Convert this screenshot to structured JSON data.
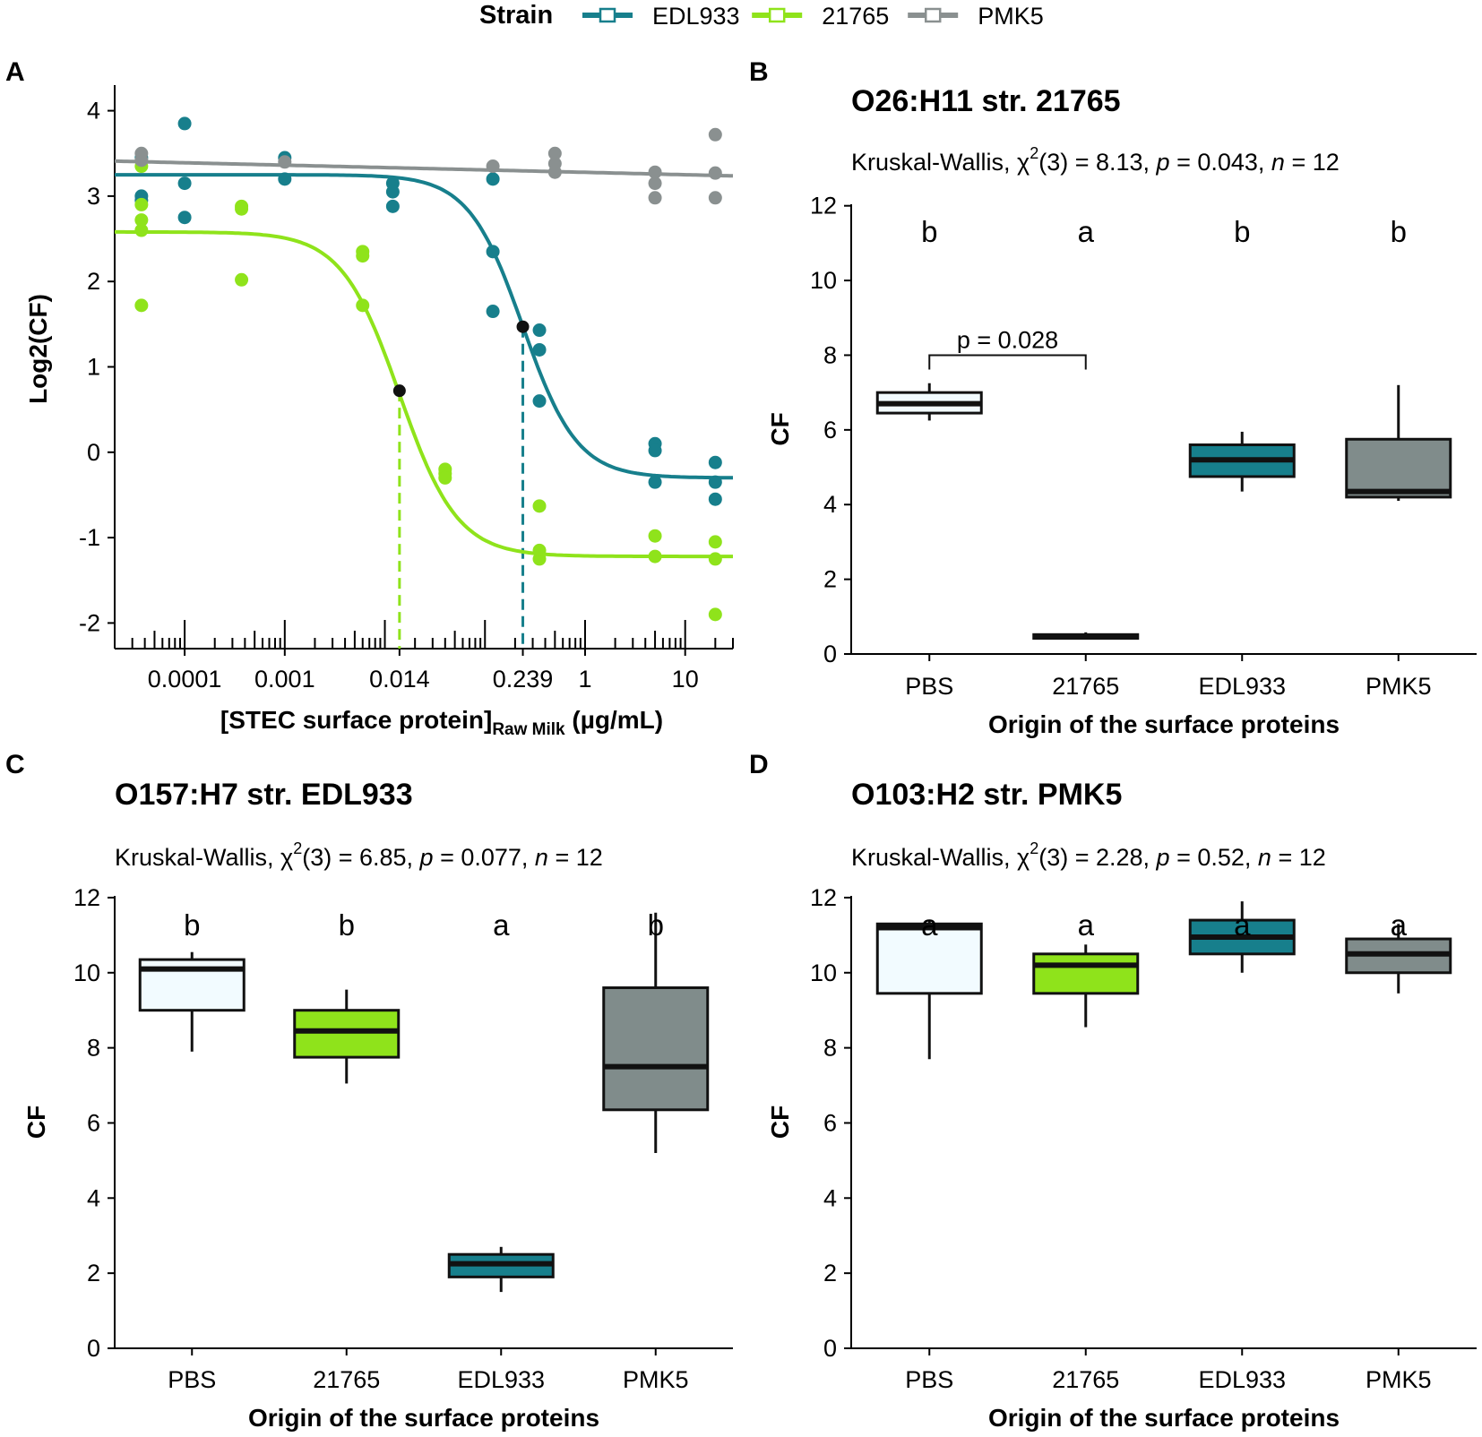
{
  "legend": {
    "title": "Strain",
    "entries": [
      {
        "label": "EDL933",
        "color": "#177F8C"
      },
      {
        "label": "21765",
        "color": "#8FE31B"
      },
      {
        "label": "PMK5",
        "color": "#8A9090"
      }
    ]
  },
  "colors": {
    "PBS": "#F2FBFF",
    "21765": "#8FE31B",
    "EDL933": "#177F8C",
    "PMK5": "#808C8B"
  },
  "chart_data": [
    {
      "panel": "A",
      "type": "scatter",
      "title": "",
      "xlabel": "[STEC surface protein]",
      "xlabel_sub": "Raw Milk",
      "xlabel_unit": " (µg/mL)",
      "ylabel": "Log2(CF)",
      "xscale": "log10",
      "xlim": [
        2e-05,
        30
      ],
      "ylim": [
        -2.3,
        4.3
      ],
      "yticks": [
        "4",
        "3",
        "2",
        "1",
        "0",
        "-1",
        "-2"
      ],
      "xticks": [
        {
          "value": 0.0001,
          "label": "0.0001"
        },
        {
          "value": 0.001,
          "label": "0.001"
        },
        {
          "value": 0.014,
          "label": "0.014"
        },
        {
          "value": 0.239,
          "label": "0.239"
        },
        {
          "value": 1,
          "label": "1"
        },
        {
          "value": 10,
          "label": "10"
        }
      ],
      "series": [
        {
          "name": "EDL933",
          "color": "#177F8C",
          "curve": {
            "top": 3.25,
            "bottom": -0.3,
            "ec50": 0.239,
            "hill": 1.6
          },
          "ec50_point": [
            0.239,
            1.47
          ],
          "points": [
            [
              3.7e-05,
              3.45
            ],
            [
              3.7e-05,
              3.0
            ],
            [
              3.7e-05,
              2.95
            ],
            [
              0.0001,
              3.85
            ],
            [
              0.0001,
              3.15
            ],
            [
              0.0001,
              2.75
            ],
            [
              0.001,
              3.45
            ],
            [
              0.001,
              3.2
            ],
            [
              0.012,
              3.15
            ],
            [
              0.012,
              3.05
            ],
            [
              0.012,
              2.88
            ],
            [
              0.12,
              3.2
            ],
            [
              0.12,
              2.35
            ],
            [
              0.12,
              1.65
            ],
            [
              0.35,
              1.43
            ],
            [
              0.35,
              1.2
            ],
            [
              0.35,
              0.6
            ],
            [
              5,
              0.1
            ],
            [
              5,
              0.02
            ],
            [
              5,
              -0.35
            ],
            [
              20,
              -0.12
            ],
            [
              20,
              -0.35
            ],
            [
              20,
              -0.55
            ]
          ]
        },
        {
          "name": "21765",
          "color": "#8FE31B",
          "curve": {
            "top": 2.58,
            "bottom": -1.22,
            "ec50": 0.014,
            "hill": 1.5
          },
          "ec50_point": [
            0.014,
            0.72
          ],
          "points": [
            [
              3.7e-05,
              3.35
            ],
            [
              3.7e-05,
              2.9
            ],
            [
              3.7e-05,
              2.72
            ],
            [
              3.7e-05,
              2.6
            ],
            [
              3.7e-05,
              1.72
            ],
            [
              0.00037,
              2.88
            ],
            [
              0.00037,
              2.85
            ],
            [
              0.00037,
              2.02
            ],
            [
              0.006,
              2.35
            ],
            [
              0.006,
              2.3
            ],
            [
              0.006,
              1.72
            ],
            [
              0.04,
              -0.2
            ],
            [
              0.04,
              -0.25
            ],
            [
              0.04,
              -0.3
            ],
            [
              0.35,
              -0.63
            ],
            [
              0.35,
              -1.15
            ],
            [
              0.35,
              -1.25
            ],
            [
              5,
              -0.98
            ],
            [
              5,
              -1.22
            ],
            [
              20,
              -1.05
            ],
            [
              20,
              -1.25
            ],
            [
              20,
              -1.9
            ]
          ]
        },
        {
          "name": "PMK5",
          "color": "#8A9090",
          "curve": {
            "intercept": 3.41,
            "slope_per_decade": -0.028
          },
          "points": [
            [
              3.7e-05,
              3.5
            ],
            [
              3.7e-05,
              3.42
            ],
            [
              0.001,
              3.4
            ],
            [
              0.12,
              3.35
            ],
            [
              0.5,
              3.5
            ],
            [
              0.5,
              3.38
            ],
            [
              0.5,
              3.28
            ],
            [
              5,
              3.28
            ],
            [
              5,
              3.15
            ],
            [
              5,
              2.98
            ],
            [
              20,
              3.72
            ],
            [
              20,
              3.27
            ],
            [
              20,
              2.98
            ]
          ]
        }
      ]
    },
    {
      "panel": "B",
      "type": "box",
      "title": "O26:H11 str. 21765",
      "stat": {
        "prefix": "Kruskal-Wallis, ",
        "chi": "χ",
        "sup": "2",
        "df": "(3) = 8.13, ",
        "p_label": "p",
        "p_value": " = 0.043, ",
        "n_label": "n",
        "n_value": " = 12"
      },
      "xlabel": "Origin of the surface proteins",
      "ylabel": "CF",
      "ylim": [
        0,
        13
      ],
      "yticks": [
        "0",
        "2",
        "4",
        "6",
        "8",
        "10",
        "12"
      ],
      "categories": [
        "PBS",
        "21765",
        "EDL933",
        "PMK5"
      ],
      "letters": [
        "b",
        "a",
        "b",
        "b"
      ],
      "bracket": {
        "from": 0,
        "to": 1,
        "label": "p = 0.028",
        "y": 8.0
      },
      "boxes": [
        {
          "min": 6.25,
          "q1": 6.45,
          "median": 6.7,
          "q3": 7.0,
          "max": 7.25
        },
        {
          "min": 0.4,
          "q1": 0.42,
          "median": 0.47,
          "q3": 0.52,
          "max": 0.58
        },
        {
          "min": 4.35,
          "q1": 4.75,
          "median": 5.2,
          "q3": 5.6,
          "max": 5.95
        },
        {
          "min": 4.1,
          "q1": 4.2,
          "median": 4.35,
          "q3": 5.75,
          "max": 7.2
        }
      ]
    },
    {
      "panel": "C",
      "type": "box",
      "title": "O157:H7 str. EDL933",
      "stat": {
        "prefix": "Kruskal-Wallis, ",
        "chi": "χ",
        "sup": "2",
        "df": "(3) = 6.85, ",
        "p_label": "p",
        "p_value": " = 0.077, ",
        "n_label": "n",
        "n_value": " = 12"
      },
      "xlabel": "Origin of the surface proteins",
      "ylabel": "CF",
      "ylim": [
        0,
        13
      ],
      "yticks": [
        "0",
        "2",
        "4",
        "6",
        "8",
        "10",
        "12"
      ],
      "categories": [
        "PBS",
        "21765",
        "EDL933",
        "PMK5"
      ],
      "letters": [
        "b",
        "b",
        "a",
        "b"
      ],
      "boxes": [
        {
          "min": 7.9,
          "q1": 9.0,
          "median": 10.1,
          "q3": 10.35,
          "max": 10.55
        },
        {
          "min": 7.05,
          "q1": 7.75,
          "median": 8.45,
          "q3": 9.0,
          "max": 9.55
        },
        {
          "min": 1.5,
          "q1": 1.9,
          "median": 2.25,
          "q3": 2.5,
          "max": 2.7
        },
        {
          "min": 5.2,
          "q1": 6.35,
          "median": 7.5,
          "q3": 9.6,
          "max": 11.6
        }
      ]
    },
    {
      "panel": "D",
      "type": "box",
      "title": "O103:H2 str. PMK5",
      "stat": {
        "prefix": "Kruskal-Wallis, ",
        "chi": "χ",
        "sup": "2",
        "df": "(3) = 2.28, ",
        "p_label": "p",
        "p_value": " = 0.52, ",
        "n_label": "n",
        "n_value": " = 12"
      },
      "xlabel": "Origin of the surface proteins",
      "ylabel": "CF",
      "ylim": [
        0,
        13
      ],
      "yticks": [
        "0",
        "2",
        "4",
        "6",
        "8",
        "10",
        "12"
      ],
      "categories": [
        "PBS",
        "21765",
        "EDL933",
        "PMK5"
      ],
      "letters": [
        "a",
        "a",
        "a",
        "a"
      ],
      "boxes": [
        {
          "min": 7.7,
          "q1": 9.45,
          "median": 11.2,
          "q3": 11.3,
          "max": 11.4
        },
        {
          "min": 8.55,
          "q1": 9.45,
          "median": 10.2,
          "q3": 10.5,
          "max": 10.75
        },
        {
          "min": 10.0,
          "q1": 10.5,
          "median": 10.95,
          "q3": 11.4,
          "max": 11.9
        },
        {
          "min": 9.45,
          "q1": 10.0,
          "median": 10.5,
          "q3": 10.9,
          "max": 11.3
        }
      ]
    }
  ]
}
